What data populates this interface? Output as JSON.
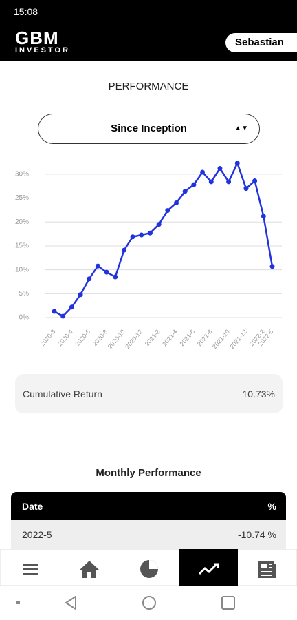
{
  "status": {
    "time": "15:08"
  },
  "header": {
    "logo": "GBM",
    "logo_sub": "INVESTOR",
    "user": "Sebastian"
  },
  "section_title": "PERFORMANCE",
  "selector": "Since Inception",
  "chart_data": {
    "type": "line",
    "categories": [
      "2020-3",
      null,
      "2020-4",
      null,
      "2020-6",
      null,
      "2020-8",
      null,
      "2020-10",
      null,
      "2020-12",
      null,
      "2021-2",
      null,
      "2021-4",
      null,
      "2021-6",
      null,
      "2021-8",
      null,
      "2021-10",
      null,
      "2021-12",
      null,
      "2022-2",
      "2022-5"
    ],
    "series": [
      {
        "color": "#2233dd",
        "values": [
          1.3,
          0.3,
          2.2,
          4.8,
          8.1,
          10.8,
          9.5,
          8.5,
          14.1,
          16.9,
          17.3,
          17.7,
          19.5,
          22.4,
          24.0,
          26.4,
          27.8,
          30.4,
          28.4,
          31.2,
          28.4,
          32.3,
          27.0,
          28.6,
          21.2,
          10.7
        ]
      }
    ],
    "ylim": [
      -1,
      33
    ],
    "yticks": [
      {
        "value": 0,
        "label": "0%"
      },
      {
        "value": 5,
        "label": "5%"
      },
      {
        "value": 10,
        "label": "10%"
      },
      {
        "value": 15,
        "label": "15%"
      },
      {
        "value": 20,
        "label": "20%"
      },
      {
        "value": 25,
        "label": "25%"
      },
      {
        "value": 30,
        "label": "30%"
      }
    ],
    "grid": true
  },
  "summary": {
    "label": "Cumulative Return",
    "value": "10.73%"
  },
  "table": {
    "title": "Monthly Performance",
    "columns": [
      "Date",
      "%"
    ],
    "rows": [
      [
        "2022-5",
        "-10.74 %"
      ]
    ]
  }
}
